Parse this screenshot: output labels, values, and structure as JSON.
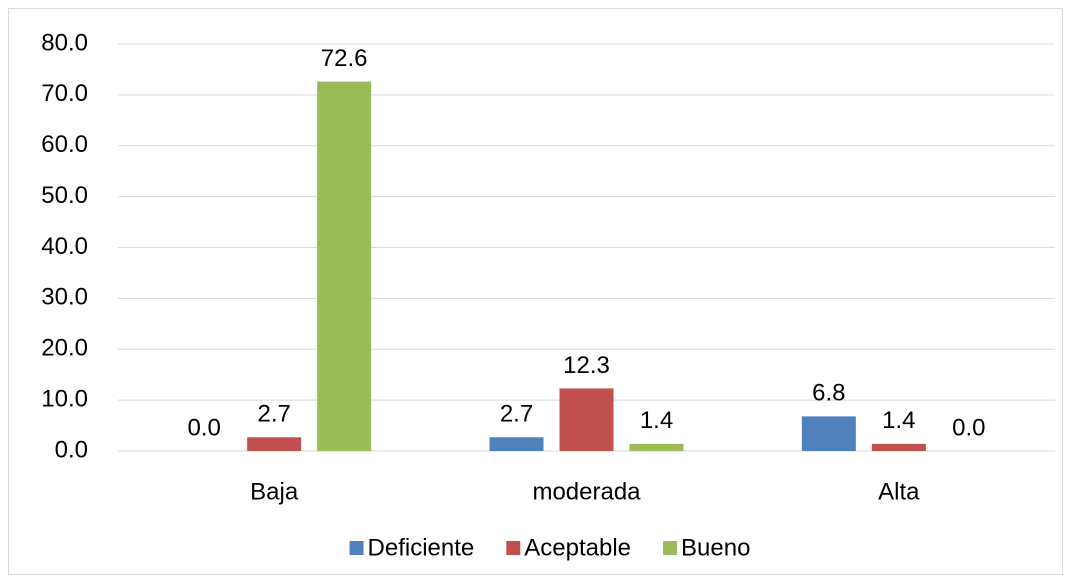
{
  "chart_data": {
    "type": "bar",
    "categories": [
      "Baja",
      "moderada",
      "Alta"
    ],
    "series": [
      {
        "name": "Deficiente",
        "color": "#4f81bd",
        "values": [
          0,
          2.7,
          6.8
        ],
        "value_labels": [
          "0.0",
          "2.7",
          "6.8"
        ]
      },
      {
        "name": "Aceptable",
        "color": "#c0504d",
        "values": [
          2.7,
          12.3,
          1.4
        ],
        "value_labels": [
          "2.7",
          "12.3",
          "1.4"
        ]
      },
      {
        "name": "Bueno",
        "color": "#9bbb59",
        "values": [
          72.6,
          1.4,
          0
        ],
        "value_labels": [
          "72.6",
          "1.4",
          "0.0"
        ]
      }
    ],
    "ylim": [
      0,
      80
    ],
    "yticks": [
      {
        "value": 0,
        "label": "0.0"
      },
      {
        "value": 10,
        "label": "10.0"
      },
      {
        "value": 20,
        "label": "20.0"
      },
      {
        "value": 30,
        "label": "30.0"
      },
      {
        "value": 40,
        "label": "40.0"
      },
      {
        "value": 50,
        "label": "50.0"
      },
      {
        "value": 60,
        "label": "60.0"
      },
      {
        "value": 70,
        "label": "70.0"
      },
      {
        "value": 80,
        "label": "80.0"
      }
    ],
    "grid": true,
    "legend": "bottom"
  }
}
